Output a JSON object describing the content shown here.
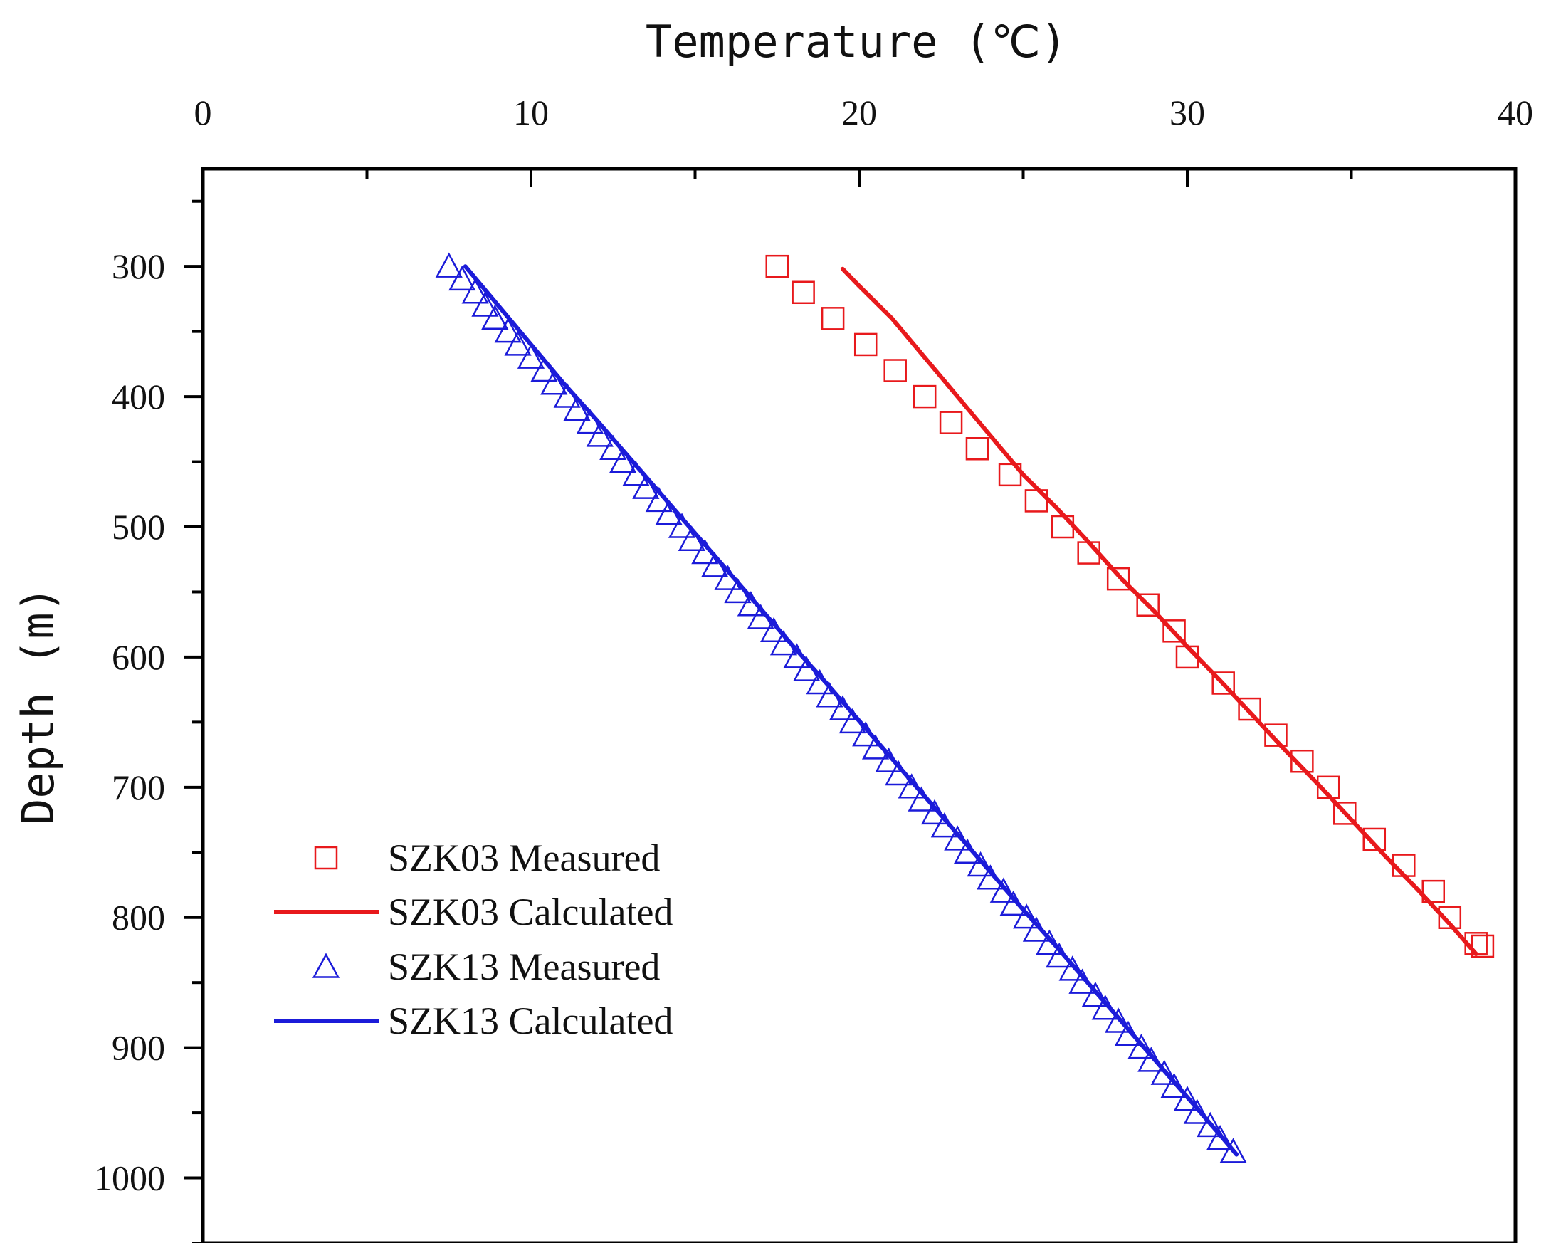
{
  "chart_data": {
    "type": "scatter",
    "title": "",
    "xlabel": "Temperature (℃)",
    "ylabel": "Depth (m)",
    "xlim": [
      0,
      40
    ],
    "ylim": [
      225,
      1050
    ],
    "x_axis_position": "top",
    "y_axis_inverted": true,
    "x_ticks": [
      0,
      10,
      20,
      30,
      40
    ],
    "y_ticks": [
      300,
      400,
      500,
      600,
      700,
      800,
      900,
      1000
    ],
    "grid": false,
    "legend_position": "bottom-left",
    "series": [
      {
        "name": "SZK03 Measured",
        "kind": "marker",
        "marker": "square",
        "color": "#e8191c",
        "points": [
          [
            17.5,
            300
          ],
          [
            18.3,
            320
          ],
          [
            19.2,
            340
          ],
          [
            20.2,
            360
          ],
          [
            21.1,
            380
          ],
          [
            22.0,
            400
          ],
          [
            22.8,
            420
          ],
          [
            23.6,
            440
          ],
          [
            24.6,
            460
          ],
          [
            25.4,
            480
          ],
          [
            26.2,
            500
          ],
          [
            27.0,
            520
          ],
          [
            27.9,
            540
          ],
          [
            28.8,
            560
          ],
          [
            29.6,
            580
          ],
          [
            30.0,
            600
          ],
          [
            31.1,
            620
          ],
          [
            31.9,
            640
          ],
          [
            32.7,
            660
          ],
          [
            33.5,
            680
          ],
          [
            34.3,
            700
          ],
          [
            34.8,
            720
          ],
          [
            35.7,
            740
          ],
          [
            36.6,
            760
          ],
          [
            37.5,
            780
          ],
          [
            38.0,
            800
          ],
          [
            38.8,
            820
          ],
          [
            39.0,
            822
          ]
        ]
      },
      {
        "name": "SZK03 Calculated",
        "kind": "line",
        "color": "#e8191c",
        "points": [
          [
            19.5,
            302
          ],
          [
            20.0,
            315
          ],
          [
            21.0,
            340
          ],
          [
            22.0,
            370
          ],
          [
            23.0,
            400
          ],
          [
            24.0,
            430
          ],
          [
            25.0,
            460
          ],
          [
            26.0,
            485
          ],
          [
            27.0,
            512
          ],
          [
            28.0,
            540
          ],
          [
            29.0,
            565
          ],
          [
            30.0,
            592
          ],
          [
            31.0,
            618
          ],
          [
            32.0,
            645
          ],
          [
            33.0,
            672
          ],
          [
            34.0,
            698
          ],
          [
            35.0,
            725
          ],
          [
            36.0,
            752
          ],
          [
            37.0,
            778
          ],
          [
            38.0,
            805
          ],
          [
            38.8,
            828
          ]
        ]
      },
      {
        "name": "SZK13 Measured",
        "kind": "marker",
        "marker": "triangle",
        "color": "#1b1bd9",
        "points": [
          [
            7.5,
            300
          ],
          [
            7.9,
            310
          ],
          [
            8.3,
            320
          ],
          [
            8.6,
            330
          ],
          [
            8.9,
            340
          ],
          [
            9.3,
            350
          ],
          [
            9.6,
            360
          ],
          [
            10.0,
            370
          ],
          [
            10.4,
            380
          ],
          [
            10.7,
            390
          ],
          [
            11.1,
            400
          ],
          [
            11.4,
            410
          ],
          [
            11.8,
            420
          ],
          [
            12.1,
            430
          ],
          [
            12.5,
            440
          ],
          [
            12.8,
            450
          ],
          [
            13.2,
            460
          ],
          [
            13.5,
            470
          ],
          [
            13.9,
            480
          ],
          [
            14.2,
            490
          ],
          [
            14.6,
            500
          ],
          [
            14.9,
            510
          ],
          [
            15.3,
            520
          ],
          [
            15.6,
            530
          ],
          [
            16.0,
            540
          ],
          [
            16.3,
            550
          ],
          [
            16.7,
            560
          ],
          [
            17.0,
            570
          ],
          [
            17.4,
            580
          ],
          [
            17.7,
            590
          ],
          [
            18.1,
            600
          ],
          [
            18.4,
            610
          ],
          [
            18.8,
            620
          ],
          [
            19.1,
            630
          ],
          [
            19.5,
            640
          ],
          [
            19.8,
            650
          ],
          [
            20.2,
            660
          ],
          [
            20.5,
            670
          ],
          [
            20.9,
            680
          ],
          [
            21.2,
            690
          ],
          [
            21.6,
            700
          ],
          [
            21.9,
            710
          ],
          [
            22.3,
            720
          ],
          [
            22.6,
            730
          ],
          [
            23.0,
            740
          ],
          [
            23.3,
            750
          ],
          [
            23.7,
            760
          ],
          [
            24.0,
            770
          ],
          [
            24.4,
            780
          ],
          [
            24.7,
            790
          ],
          [
            25.1,
            800
          ],
          [
            25.4,
            810
          ],
          [
            25.8,
            820
          ],
          [
            26.1,
            830
          ],
          [
            26.5,
            840
          ],
          [
            26.8,
            850
          ],
          [
            27.2,
            860
          ],
          [
            27.5,
            870
          ],
          [
            27.9,
            880
          ],
          [
            28.2,
            890
          ],
          [
            28.6,
            900
          ],
          [
            28.9,
            910
          ],
          [
            29.3,
            920
          ],
          [
            29.6,
            930
          ],
          [
            30.0,
            940
          ],
          [
            30.3,
            950
          ],
          [
            30.7,
            960
          ],
          [
            31.0,
            970
          ],
          [
            31.4,
            980
          ]
        ]
      },
      {
        "name": "SZK13 Calculated",
        "kind": "line",
        "color": "#1b1bd9",
        "points": [
          [
            8.0,
            300
          ],
          [
            9.0,
            330
          ],
          [
            10.0,
            360
          ],
          [
            11.0,
            390
          ],
          [
            12.0,
            418
          ],
          [
            13.0,
            447
          ],
          [
            14.0,
            476
          ],
          [
            15.0,
            505
          ],
          [
            16.0,
            534
          ],
          [
            17.0,
            563
          ],
          [
            18.0,
            592
          ],
          [
            19.0,
            620
          ],
          [
            20.0,
            649
          ],
          [
            21.0,
            678
          ],
          [
            22.0,
            707
          ],
          [
            23.0,
            736
          ],
          [
            24.0,
            765
          ],
          [
            25.0,
            794
          ],
          [
            26.0,
            822
          ],
          [
            27.0,
            851
          ],
          [
            28.0,
            880
          ],
          [
            29.0,
            909
          ],
          [
            30.0,
            938
          ],
          [
            31.0,
            967
          ],
          [
            31.5,
            982
          ]
        ]
      }
    ]
  }
}
